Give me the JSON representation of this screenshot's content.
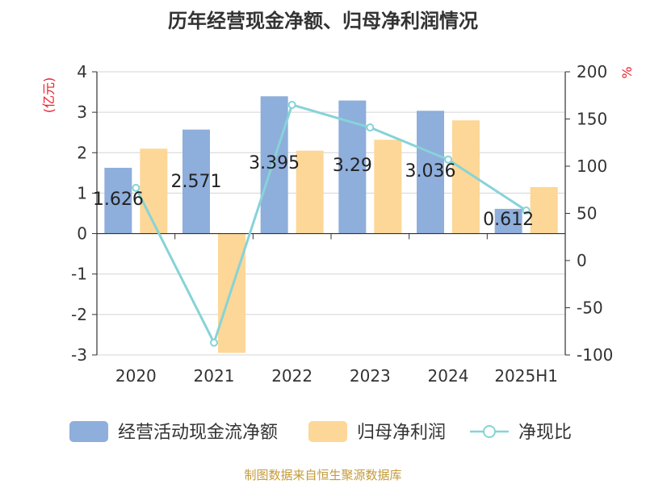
{
  "chart_data": {
    "type": "bar",
    "title": "历年经营现金净额、归母净利润情况",
    "left_axis_unit": "(亿元)",
    "right_axis_unit": "%",
    "categories": [
      "2020",
      "2021",
      "2022",
      "2023",
      "2024",
      "2025H1"
    ],
    "left_ylim": [
      -3,
      4
    ],
    "left_ticks": [
      "4",
      "3",
      "2",
      "1",
      "0",
      "-1",
      "-2",
      "-3"
    ],
    "right_ylim": [
      -100,
      200
    ],
    "right_ticks": [
      "200",
      "150",
      "100",
      "50",
      "0",
      "-50",
      "-100"
    ],
    "grid": true,
    "legend_position": "bottom",
    "series": [
      {
        "name": "经营活动现金流净额",
        "kind": "bar",
        "axis": "left",
        "color": "#8eaedc",
        "values": [
          1.626,
          2.571,
          3.395,
          3.29,
          3.036,
          0.612
        ],
        "labels": [
          "1.626",
          "2.571",
          "3.395",
          "3.29",
          "3.036",
          "0.612"
        ]
      },
      {
        "name": "归母净利润",
        "kind": "bar",
        "axis": "left",
        "color": "#fdd797",
        "values": [
          2.1,
          -2.95,
          2.05,
          2.32,
          2.8,
          1.15
        ]
      },
      {
        "name": "净现比",
        "kind": "line",
        "axis": "right",
        "color": "#86d3d8",
        "values": [
          77,
          -87,
          165,
          141,
          107,
          53
        ]
      }
    ],
    "source": "制图数据来自恒生聚源数据库"
  }
}
